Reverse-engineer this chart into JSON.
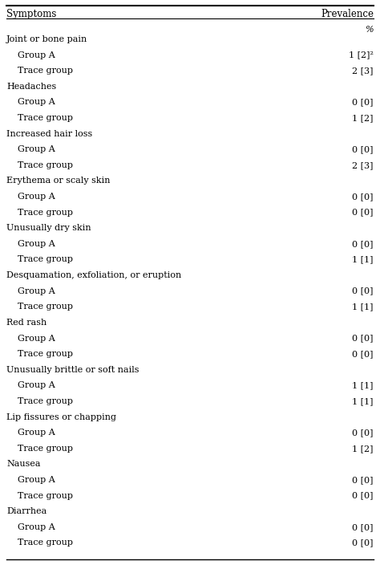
{
  "col_headers": [
    "Symptoms",
    "Prevalence"
  ],
  "sub_header": "%",
  "rows": [
    {
      "text": "Joint or bone pain",
      "indent": 0,
      "value": ""
    },
    {
      "text": "    Group A",
      "indent": 1,
      "value": "1 [2]²"
    },
    {
      "text": "    Trace group",
      "indent": 1,
      "value": "2 [3]"
    },
    {
      "text": "Headaches",
      "indent": 0,
      "value": ""
    },
    {
      "text": "    Group A",
      "indent": 1,
      "value": "0 [0]"
    },
    {
      "text": "    Trace group",
      "indent": 1,
      "value": "1 [2]"
    },
    {
      "text": "Increased hair loss",
      "indent": 0,
      "value": ""
    },
    {
      "text": "    Group A",
      "indent": 1,
      "value": "0 [0]"
    },
    {
      "text": "    Trace group",
      "indent": 1,
      "value": "2 [3]"
    },
    {
      "text": "Erythema or scaly skin",
      "indent": 0,
      "value": ""
    },
    {
      "text": "    Group A",
      "indent": 1,
      "value": "0 [0]"
    },
    {
      "text": "    Trace group",
      "indent": 1,
      "value": "0 [0]"
    },
    {
      "text": "Unusually dry skin",
      "indent": 0,
      "value": ""
    },
    {
      "text": "    Group A",
      "indent": 1,
      "value": "0 [0]"
    },
    {
      "text": "    Trace group",
      "indent": 1,
      "value": "1 [1]"
    },
    {
      "text": "Desquamation, exfoliation, or eruption",
      "indent": 0,
      "value": ""
    },
    {
      "text": "    Group A",
      "indent": 1,
      "value": "0 [0]"
    },
    {
      "text": "    Trace group",
      "indent": 1,
      "value": "1 [1]"
    },
    {
      "text": "Red rash",
      "indent": 0,
      "value": ""
    },
    {
      "text": "    Group A",
      "indent": 1,
      "value": "0 [0]"
    },
    {
      "text": "    Trace group",
      "indent": 1,
      "value": "0 [0]"
    },
    {
      "text": "Unusually brittle or soft nails",
      "indent": 0,
      "value": ""
    },
    {
      "text": "    Group A",
      "indent": 1,
      "value": "1 [1]"
    },
    {
      "text": "    Trace group",
      "indent": 1,
      "value": "1 [1]"
    },
    {
      "text": "Lip fissures or chapping",
      "indent": 0,
      "value": ""
    },
    {
      "text": "    Group A",
      "indent": 1,
      "value": "0 [0]"
    },
    {
      "text": "    Trace group",
      "indent": 1,
      "value": "1 [2]"
    },
    {
      "text": "Nausea",
      "indent": 0,
      "value": ""
    },
    {
      "text": "    Group A",
      "indent": 1,
      "value": "0 [0]"
    },
    {
      "text": "    Trace group",
      "indent": 1,
      "value": "0 [0]"
    },
    {
      "text": "Diarrhea",
      "indent": 0,
      "value": ""
    },
    {
      "text": "    Group A",
      "indent": 1,
      "value": "0 [0]"
    },
    {
      "text": "    Trace group",
      "indent": 1,
      "value": "0 [0]"
    }
  ],
  "header_fontsize": 8.5,
  "row_fontsize": 8.0,
  "background_color": "#ffffff",
  "text_color": "#000000",
  "header_line_color": "#000000"
}
